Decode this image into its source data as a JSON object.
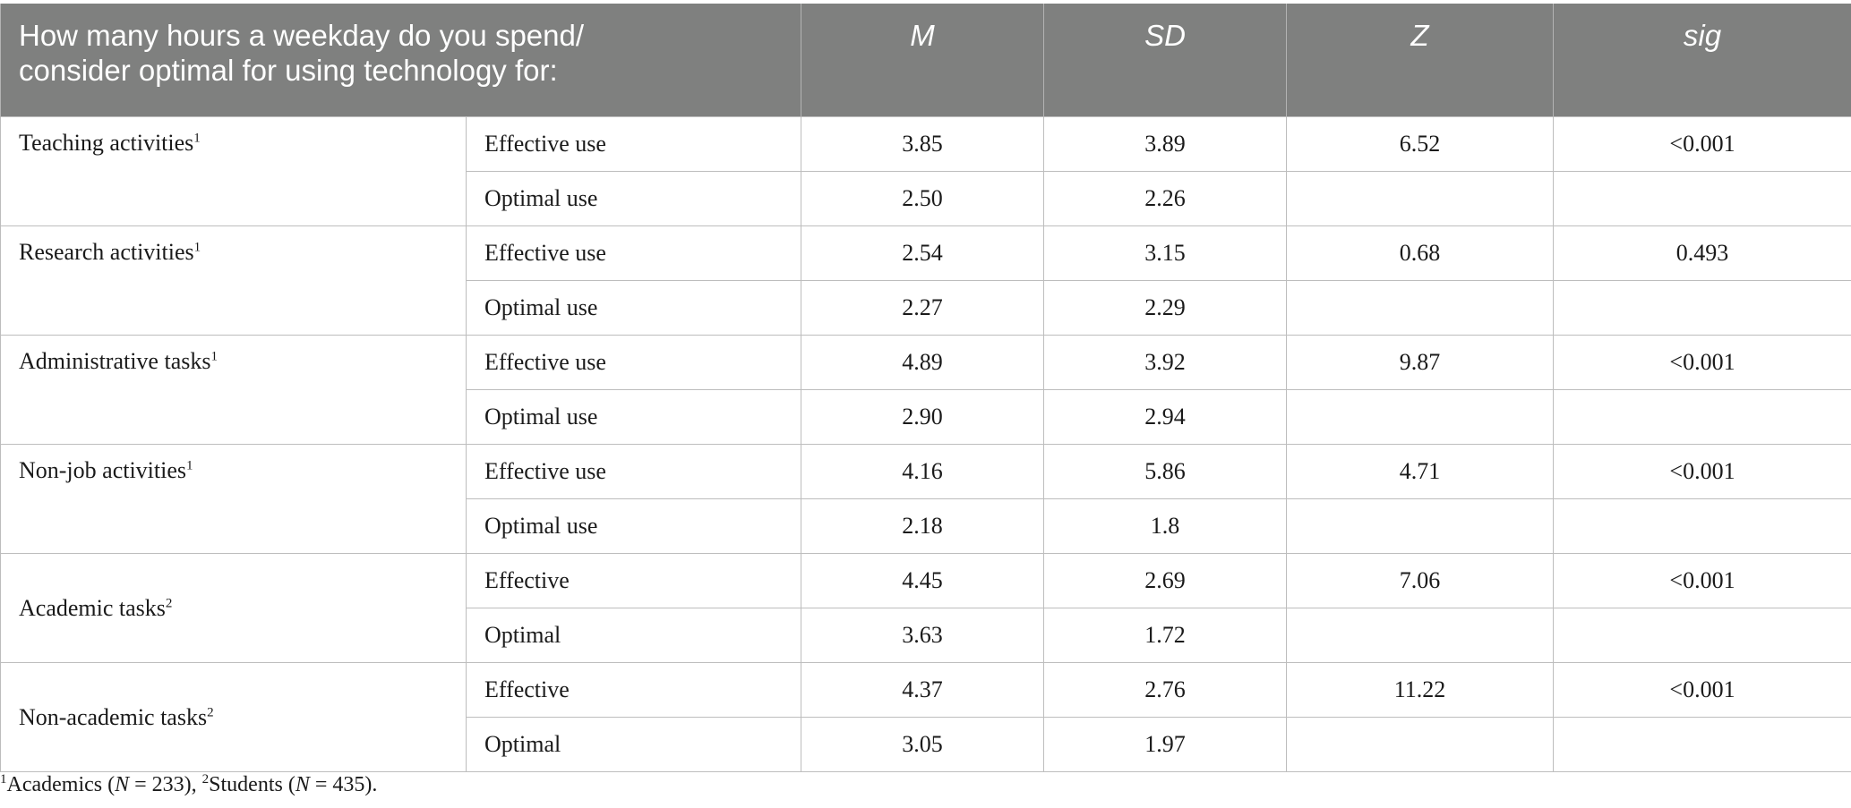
{
  "header": {
    "question_line1": "How many hours a weekday do you spend/",
    "question_line2": "consider optimal for using technology for:",
    "columns": [
      "M",
      "SD",
      "Z",
      "sig"
    ]
  },
  "groups": [
    {
      "label": "Teaching activities",
      "note": "1",
      "rows": [
        {
          "use": "Effective use",
          "M": "3.85",
          "SD": "3.89",
          "Z": "6.52",
          "sig": "<0.001"
        },
        {
          "use": "Optimal use",
          "M": "2.50",
          "SD": "2.26",
          "Z": "",
          "sig": ""
        }
      ]
    },
    {
      "label": "Research activities",
      "note": "1",
      "rows": [
        {
          "use": "Effective use",
          "M": "2.54",
          "SD": "3.15",
          "Z": "0.68",
          "sig": "0.493"
        },
        {
          "use": "Optimal use",
          "M": "2.27",
          "SD": "2.29",
          "Z": "",
          "sig": ""
        }
      ]
    },
    {
      "label": "Administrative tasks",
      "note": "1",
      "rows": [
        {
          "use": "Effective use",
          "M": "4.89",
          "SD": "3.92",
          "Z": "9.87",
          "sig": "<0.001"
        },
        {
          "use": "Optimal use",
          "M": "2.90",
          "SD": "2.94",
          "Z": "",
          "sig": ""
        }
      ]
    },
    {
      "label": "Non-job activities",
      "note": "1",
      "rows": [
        {
          "use": "Effective use",
          "M": "4.16",
          "SD": "5.86",
          "Z": "4.71",
          "sig": "<0.001"
        },
        {
          "use": "Optimal use",
          "M": "2.18",
          "SD": "1.8",
          "Z": "",
          "sig": ""
        }
      ]
    },
    {
      "label": "Academic tasks",
      "note": "2",
      "rows": [
        {
          "use": "Effective",
          "M": "4.45",
          "SD": "2.69",
          "Z": "7.06",
          "sig": "<0.001"
        },
        {
          "use": "Optimal",
          "M": "3.63",
          "SD": "1.72",
          "Z": "",
          "sig": ""
        }
      ]
    },
    {
      "label": "Non-academic tasks",
      "note": "2",
      "rows": [
        {
          "use": "Effective",
          "M": "4.37",
          "SD": "2.76",
          "Z": "11.22",
          "sig": "<0.001"
        },
        {
          "use": "Optimal",
          "M": "3.05",
          "SD": "1.97",
          "Z": "",
          "sig": ""
        }
      ]
    }
  ],
  "footnote": {
    "mark1": "1",
    "text1a": "Academics (",
    "n_symbol": "N",
    "text1b": " = 233), ",
    "mark2": "2",
    "text2a": "Students (",
    "text2b": " = 435)."
  }
}
